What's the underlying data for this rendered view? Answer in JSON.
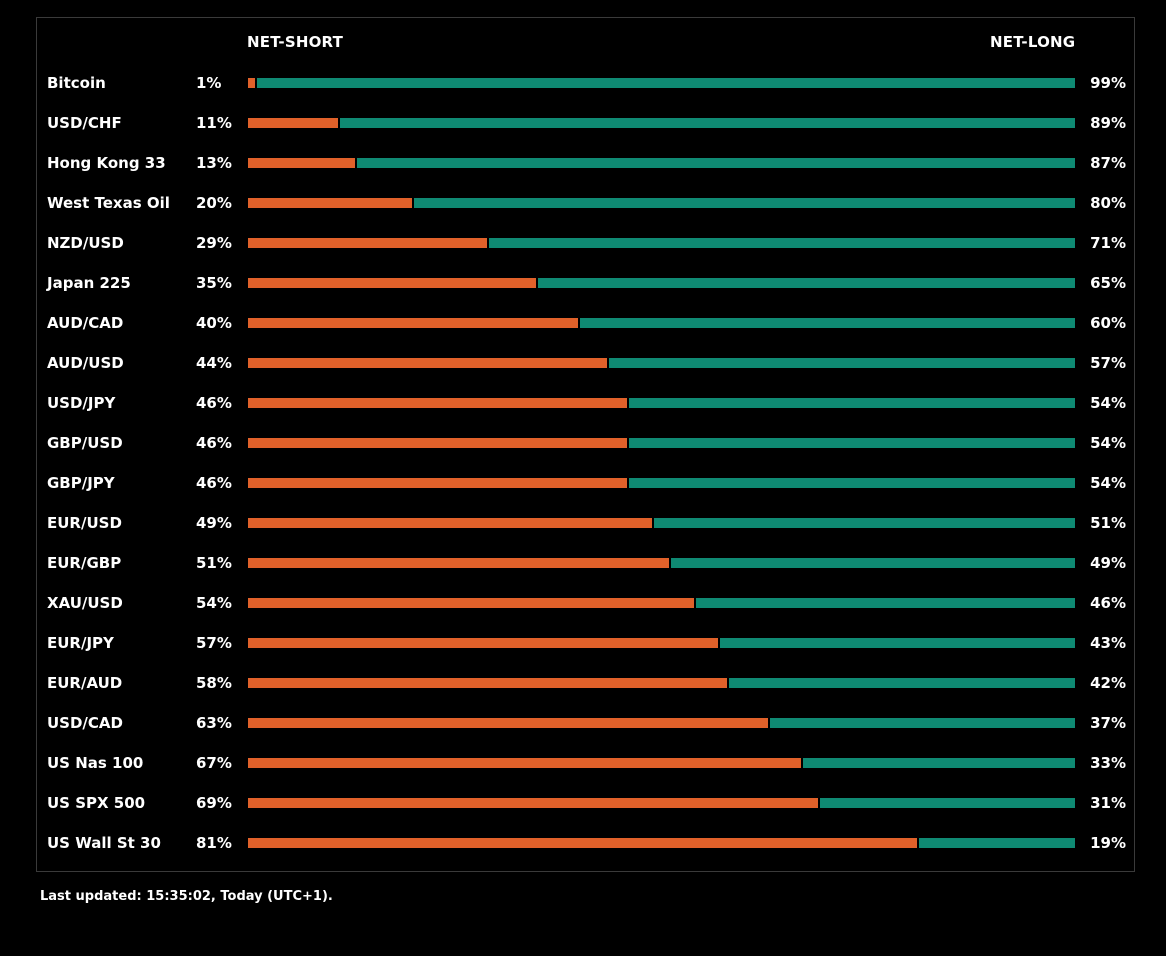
{
  "header": {
    "short_label": "NET-SHORT",
    "long_label": "NET-LONG"
  },
  "footer": {
    "updated": "Last updated: 15:35:02, Today (UTC+1)."
  },
  "colors": {
    "short": "#e0612a",
    "long": "#0f8a73",
    "background": "#000000",
    "text": "#ffffff"
  },
  "chart_data": {
    "type": "bar",
    "orientation": "horizontal",
    "stacked": true,
    "categories": [
      "Bitcoin",
      "USD/CHF",
      "Hong Kong 33",
      "West Texas Oil",
      "NZD/USD",
      "Japan 225",
      "AUD/CAD",
      "AUD/USD",
      "USD/JPY",
      "GBP/USD",
      "GBP/JPY",
      "EUR/USD",
      "EUR/GBP",
      "XAU/USD",
      "EUR/JPY",
      "EUR/AUD",
      "USD/CAD",
      "US Nas 100",
      "US SPX 500",
      "US Wall St 30"
    ],
    "series": [
      {
        "name": "NET-SHORT",
        "values": [
          1,
          11,
          13,
          20,
          29,
          35,
          40,
          44,
          46,
          46,
          46,
          49,
          51,
          54,
          57,
          58,
          63,
          67,
          69,
          81
        ]
      },
      {
        "name": "NET-LONG",
        "values": [
          99,
          89,
          87,
          80,
          71,
          65,
          60,
          57,
          54,
          54,
          54,
          51,
          49,
          46,
          43,
          42,
          37,
          33,
          31,
          19
        ]
      }
    ],
    "short_labels": [
      "1%",
      "11%",
      "13%",
      "20%",
      "29%",
      "35%",
      "40%",
      "44%",
      "46%",
      "46%",
      "46%",
      "49%",
      "51%",
      "54%",
      "57%",
      "58%",
      "63%",
      "67%",
      "69%",
      "81%"
    ],
    "long_labels": [
      "99%",
      "89%",
      "87%",
      "80%",
      "71%",
      "65%",
      "60%",
      "57%",
      "54%",
      "54%",
      "54%",
      "51%",
      "49%",
      "46%",
      "43%",
      "42%",
      "37%",
      "33%",
      "31%",
      "19%"
    ],
    "xlim": [
      0,
      100
    ],
    "grid": false,
    "legend": "top"
  }
}
